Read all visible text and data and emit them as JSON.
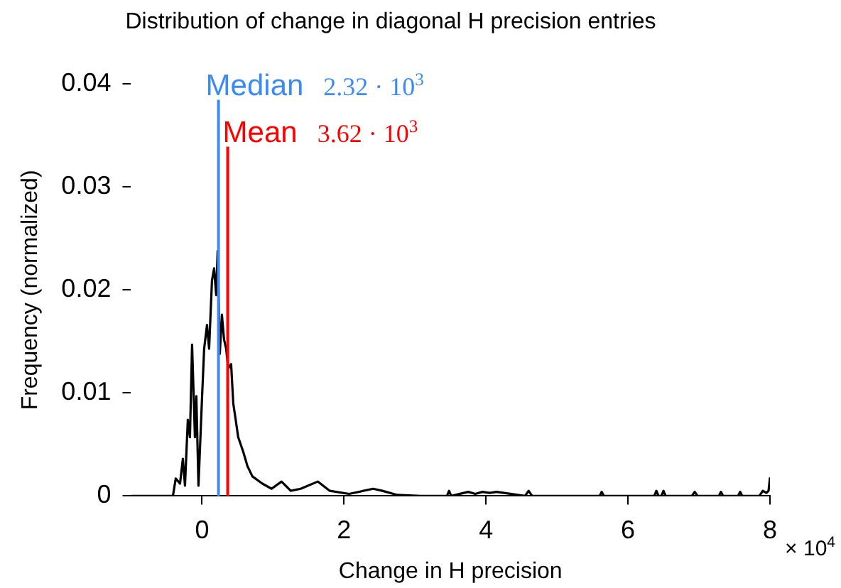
{
  "chart_data": {
    "type": "line",
    "title": "Distribution of change in diagonal H precision entries",
    "xlabel": "Change in H precision",
    "ylabel": "Frequency (normalized)",
    "x": [
      -1,
      -0.41,
      -0.37,
      -0.31,
      -0.27,
      -0.24,
      -0.2,
      -0.17,
      -0.14,
      -0.1,
      -0.08,
      -0.05,
      0,
      0.03,
      0.07,
      0.1,
      0.14,
      0.17,
      0.2,
      0.22,
      0.25,
      0.28,
      0.31,
      0.34,
      0.37,
      0.41,
      0.44,
      0.47,
      0.51,
      0.58,
      0.64,
      0.71,
      0.85,
      0.98,
      1.12,
      1.25,
      1.39,
      1.63,
      1.8,
      2.07,
      2.41,
      2.54,
      2.75,
      3.08,
      3.45,
      3.48,
      3.51,
      3.75,
      3.85,
      3.95,
      4.05,
      4.15,
      4.55,
      4.6,
      4.65,
      5.6,
      5.63,
      5.66,
      6.37,
      6.4,
      6.43,
      6.47,
      6.5,
      6.53,
      6.9,
      6.94,
      6.98,
      7.28,
      7.31,
      7.34,
      7.55,
      7.58,
      7.61,
      7.85,
      7.9,
      7.95,
      7.98,
      8
    ],
    "series": [
      {
        "color": "#000000",
        "values": [
          0,
          0,
          0.0017,
          0.0012,
          0.0036,
          0.001,
          0.0074,
          0.0057,
          0.0147,
          0.0057,
          0.0097,
          0.001,
          0.0095,
          0.0143,
          0.0166,
          0.0143,
          0.0209,
          0.0221,
          0.0195,
          0.0238,
          0.0138,
          0.0176,
          0.0152,
          0.0143,
          0.0124,
          0.0128,
          0.009,
          0.0076,
          0.0057,
          0.0043,
          0.0029,
          0.0019,
          0.0012,
          0.0007,
          0.0014,
          0.0005,
          0.0007,
          0.0014,
          0.0005,
          0.0002,
          0.0007,
          0.0005,
          0.0001,
          0,
          0,
          0.0005,
          0,
          0.0004,
          0.0002,
          0.0004,
          0.0003,
          0.0004,
          0,
          0.0005,
          0,
          0,
          0.0004,
          0,
          0,
          0.0005,
          0,
          0,
          0.0005,
          0,
          0,
          0.0004,
          0,
          0,
          0.0004,
          0,
          0,
          0.0004,
          0,
          0,
          0.0005,
          0.0003,
          0.0005,
          0.0018
        ]
      }
    ],
    "xlim": [
      -1,
      8
    ],
    "xticks": [
      0,
      2,
      4,
      6,
      8
    ],
    "ylim": [
      0,
      0.04
    ],
    "yticks": [
      0,
      0.01,
      0.02,
      0.03,
      0.04
    ],
    "grid": false,
    "legend": false,
    "marker": "none",
    "line_style": "solid",
    "ref_lines": [
      {
        "axis": "x",
        "value": 0.232,
        "label": "Median",
        "color": "#3c8bf5"
      },
      {
        "axis": "x",
        "value": 0.362,
        "label": "Mean",
        "color": "#ff0000"
      }
    ],
    "annotations": [
      "2.32 · 10$^{3}$",
      "3.62 · 10$^{3}$",
      "× 10$^{4}$"
    ]
  }
}
